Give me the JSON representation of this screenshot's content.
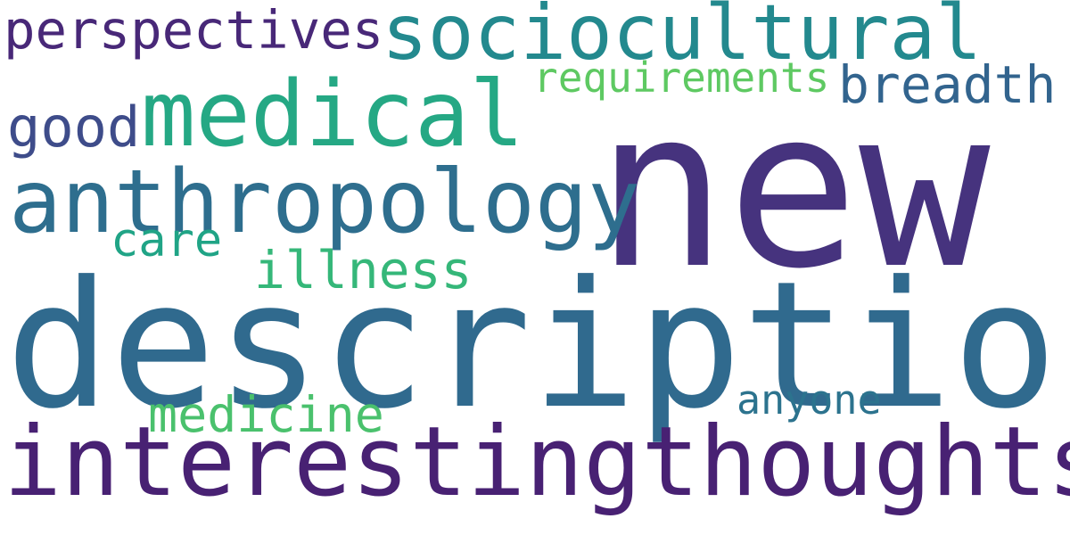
{
  "words": {
    "new": {
      "text": "new",
      "color": "#46337e"
    },
    "description": {
      "text": "description",
      "color": "#306a8e"
    },
    "interestingthoughts": {
      "text": "interestingthoughts",
      "color": "#482173"
    },
    "anthropology": {
      "text": "anthropology",
      "color": "#2e6e8e"
    },
    "medical": {
      "text": "medical",
      "color": "#25a884"
    },
    "sociocultural": {
      "text": "sociocultural",
      "color": "#23898e"
    },
    "perspectives": {
      "text": "perspectives",
      "color": "#482878"
    },
    "breadth": {
      "text": "breadth",
      "color": "#32648e"
    },
    "requirements": {
      "text": "requirements",
      "color": "#5ec962"
    },
    "good": {
      "text": "good",
      "color": "#3e4c8a"
    },
    "care": {
      "text": "care",
      "color": "#20a486"
    },
    "illness": {
      "text": "illness",
      "color": "#35b779"
    },
    "medicine": {
      "text": "medicine",
      "color": "#4ac16d"
    },
    "anyone": {
      "text": "anyone",
      "color": "#2c738e"
    }
  }
}
